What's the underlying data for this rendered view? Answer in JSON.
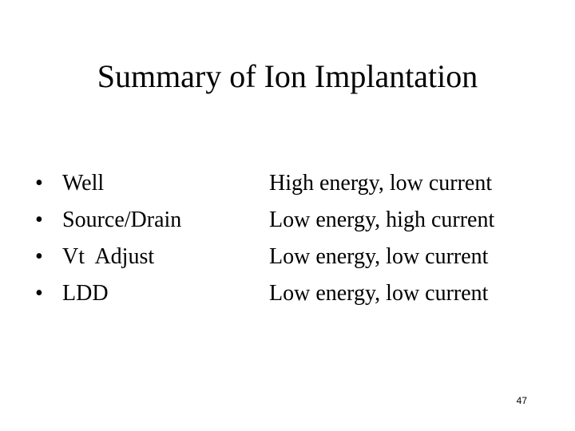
{
  "header": {
    "title": "Summary of Ion Implantation"
  },
  "items": [
    {
      "term": "Well",
      "description": "High energy, low current"
    },
    {
      "term": "Source/Drain",
      "description": "Low energy, high current"
    },
    {
      "term": "Vt  Adjust",
      "description": "Low energy, low current"
    },
    {
      "term": "LDD",
      "description": "Low energy, low current"
    }
  ],
  "footer": {
    "page_number": "47"
  }
}
